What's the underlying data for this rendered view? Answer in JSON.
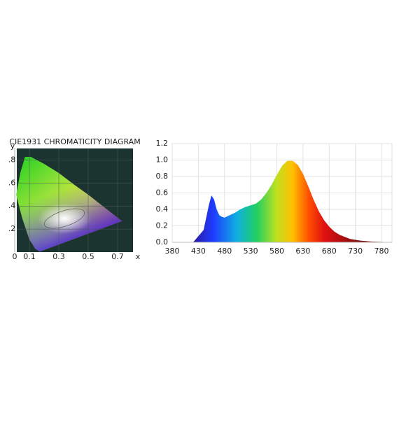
{
  "chart_data": [
    {
      "type": "chromaticity",
      "title": "CIE1931 CHROMATICITY DIAGRAM",
      "xlabel": "x",
      "ylabel": "y",
      "xlim": [
        0,
        0.8
      ],
      "ylim": [
        0,
        0.9
      ],
      "xticks": [
        0,
        0.1,
        0.3,
        0.5,
        0.7
      ],
      "yticks": [
        {
          "value": 0.2,
          "label": ".2"
        },
        {
          "value": 0.4,
          "label": ".4"
        },
        {
          "value": 0.6,
          "label": ".6"
        },
        {
          "value": 0.8,
          "label": ".8"
        }
      ]
    },
    {
      "type": "area",
      "x": [
        420,
        440,
        450,
        455,
        460,
        465,
        470,
        475,
        480,
        490,
        500,
        510,
        520,
        530,
        540,
        550,
        560,
        570,
        580,
        590,
        600,
        610,
        620,
        630,
        640,
        650,
        660,
        670,
        680,
        690,
        700,
        720,
        740,
        760,
        780,
        800
      ],
      "values": [
        0,
        0.15,
        0.45,
        0.57,
        0.52,
        0.4,
        0.33,
        0.31,
        0.3,
        0.33,
        0.36,
        0.4,
        0.43,
        0.45,
        0.47,
        0.52,
        0.6,
        0.7,
        0.82,
        0.93,
        0.99,
        0.99,
        0.94,
        0.83,
        0.68,
        0.52,
        0.38,
        0.27,
        0.19,
        0.13,
        0.09,
        0.04,
        0.02,
        0.01,
        0.005,
        0
      ],
      "xlim": [
        380,
        800
      ],
      "ylim": [
        0,
        1.2
      ],
      "xticks": [
        380,
        430,
        480,
        530,
        580,
        630,
        680,
        730,
        780
      ],
      "yticks": [
        {
          "value": 0,
          "label": "0.0"
        },
        0.2,
        0.4,
        0.6,
        0.8,
        {
          "value": 1,
          "label": "1.0"
        },
        1.2
      ],
      "grid": true
    }
  ]
}
